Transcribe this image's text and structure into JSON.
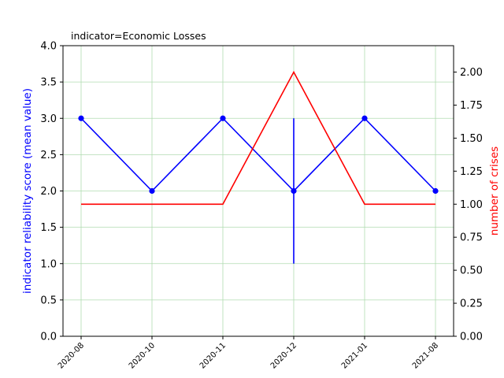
{
  "chart_data": {
    "type": "line",
    "title": "indicator=Economic Losses",
    "x_categories": [
      "2020-08",
      "2020-10",
      "2020-11",
      "2020-12",
      "2021-01",
      "2021-08"
    ],
    "left_axis": {
      "label": "indicator reliability score (mean value)",
      "color": "#0000ff",
      "ylim": [
        0,
        4.0
      ],
      "ticks": [
        "0.0",
        "0.5",
        "1.0",
        "1.5",
        "2.0",
        "2.5",
        "3.0",
        "3.5",
        "4.0"
      ]
    },
    "right_axis": {
      "label": "number of crises",
      "color": "#ff0000",
      "ylim": [
        0,
        2.2
      ],
      "ticks": [
        "0.00",
        "0.25",
        "0.50",
        "0.75",
        "1.00",
        "1.25",
        "1.50",
        "1.75",
        "2.00"
      ]
    },
    "series": [
      {
        "axis": "left",
        "color": "#0000ff",
        "marker": "circle",
        "values": [
          3.0,
          2.0,
          3.0,
          2.0,
          3.0,
          2.0
        ],
        "error_range": [
          null,
          null,
          null,
          [
            1.0,
            3.0
          ],
          null,
          null
        ]
      },
      {
        "axis": "right",
        "color": "#ff0000",
        "marker": "none",
        "values": [
          1.0,
          1.0,
          1.0,
          2.0,
          1.0,
          1.0
        ]
      }
    ],
    "grid": true,
    "grid_color": "#b0dcb0"
  }
}
